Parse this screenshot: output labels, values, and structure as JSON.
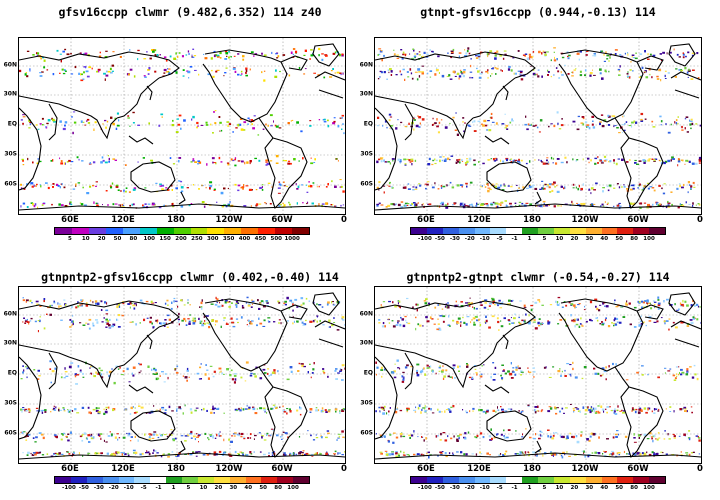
{
  "panels": [
    {
      "title": "gfsv16ccpp clwmr (9.482,6.352) 114 z40",
      "palette": "abs",
      "cbar_labels": [
        "5",
        "10",
        "20",
        "50",
        "80",
        "100",
        "150",
        "200",
        "250",
        "300",
        "350",
        "400",
        "450",
        "500",
        "1000"
      ]
    },
    {
      "title": "gtnpt-gfsv16ccpp (0.944,-0.13) 114",
      "palette": "diff",
      "cbar_labels": [
        "-100",
        "-50",
        "-30",
        "-20",
        "-10",
        "-5",
        "-1",
        "1",
        "5",
        "10",
        "20",
        "30",
        "40",
        "50",
        "80",
        "100"
      ]
    },
    {
      "title": "gtnpntp2-gfsv16ccpp clwmr (0.402,-0.40) 114",
      "palette": "diff",
      "cbar_labels": [
        "-100",
        "-50",
        "-30",
        "-20",
        "-10",
        "-5",
        "-1",
        "1",
        "5",
        "10",
        "20",
        "30",
        "40",
        "50",
        "80",
        "100"
      ]
    },
    {
      "title": "gtnpntp2-gtnpt clwmr (-0.54,-0.27) 114",
      "palette": "diff",
      "cbar_labels": [
        "-100",
        "-50",
        "-30",
        "-20",
        "-10",
        "-5",
        "-1",
        "1",
        "5",
        "10",
        "20",
        "30",
        "40",
        "50",
        "80",
        "100"
      ]
    }
  ],
  "lat_labels": [
    "60N",
    "30N",
    "EQ",
    "30S",
    "60S"
  ],
  "lon_labels": [
    "60E",
    "120E",
    "180",
    "120W",
    "60W",
    "0"
  ],
  "palettes": {
    "abs": [
      "#7b0099",
      "#c000c0",
      "#6a3de0",
      "#2060ff",
      "#4aa0ff",
      "#00c8c8",
      "#00b000",
      "#50d000",
      "#b0e000",
      "#ffe000",
      "#ffb000",
      "#ff7000",
      "#ff2000",
      "#c00000",
      "#800000"
    ],
    "diff": [
      "#3c0090",
      "#2020c0",
      "#3060e0",
      "#4a90f0",
      "#70b8ff",
      "#a8dcff",
      "#ffffff",
      "#20a020",
      "#70d040",
      "#c8e830",
      "#ffe040",
      "#ffb030",
      "#ff7020",
      "#e02010",
      "#a00020",
      "#600030"
    ]
  }
}
